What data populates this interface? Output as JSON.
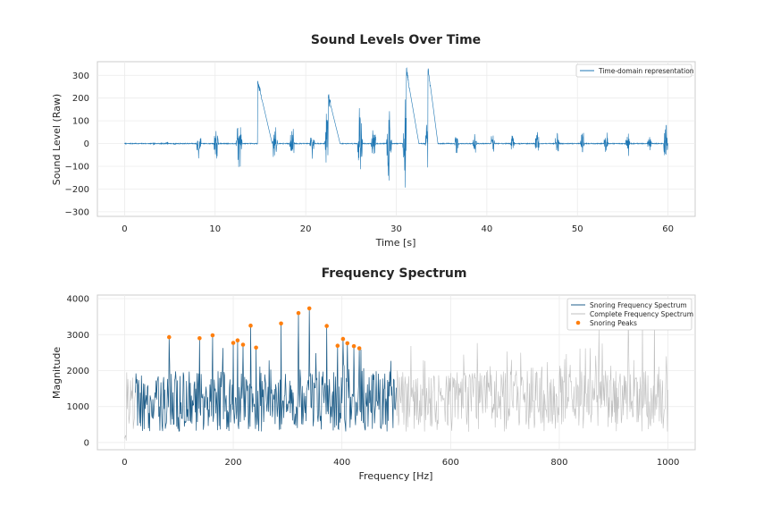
{
  "chart_data": [
    {
      "type": "line",
      "title": "Sound Levels Over Time",
      "xlabel": "Time [s]",
      "ylabel": "Sound Level (Raw)",
      "xlim": [
        -3,
        63
      ],
      "ylim": [
        -320,
        360
      ],
      "xticks": [
        0,
        10,
        20,
        30,
        40,
        50,
        60
      ],
      "yticks": [
        -300,
        -200,
        -100,
        0,
        100,
        200,
        300
      ],
      "grid": true,
      "legend": "top-right",
      "series": [
        {
          "name": "Time-domain representation",
          "color": "#1f77b4",
          "events": [
            {
              "t": 3.1,
              "dur": 0.3,
              "amp": 8
            },
            {
              "t": 4.5,
              "dur": 0.4,
              "amp": 8
            },
            {
              "t": 5.4,
              "dur": 0.3,
              "amp": 6
            },
            {
              "t": 7.9,
              "dur": 0.6,
              "amp": 85
            },
            {
              "t": 9.8,
              "dur": 0.6,
              "amp": 80
            },
            {
              "t": 12.3,
              "dur": 0.7,
              "amp": 160
            },
            {
              "t": 14.7,
              "dur": 0.5,
              "amp": 200
            },
            {
              "t": 16.3,
              "dur": 0.6,
              "amp": 110
            },
            {
              "t": 18.2,
              "dur": 0.6,
              "amp": 120
            },
            {
              "t": 20.4,
              "dur": 0.6,
              "amp": 90
            },
            {
              "t": 22.1,
              "dur": 0.8,
              "amp": 260
            },
            {
              "t": 25.7,
              "dur": 0.6,
              "amp": 210
            },
            {
              "t": 27.2,
              "dur": 0.6,
              "amp": 110
            },
            {
              "t": 28.9,
              "dur": 0.6,
              "amp": 280
            },
            {
              "t": 30.7,
              "dur": 0.8,
              "amp": 240
            },
            {
              "t": 33.2,
              "dur": 0.6,
              "amp": 280
            },
            {
              "t": 36.4,
              "dur": 0.5,
              "amp": 60
            },
            {
              "t": 38.4,
              "dur": 0.5,
              "amp": 55
            },
            {
              "t": 40.4,
              "dur": 0.5,
              "amp": 70
            },
            {
              "t": 42.6,
              "dur": 0.5,
              "amp": 55
            },
            {
              "t": 45.3,
              "dur": 0.5,
              "amp": 90
            },
            {
              "t": 47.5,
              "dur": 0.5,
              "amp": 85
            },
            {
              "t": 50.3,
              "dur": 0.5,
              "amp": 75
            },
            {
              "t": 52.9,
              "dur": 0.5,
              "amp": 70
            },
            {
              "t": 55.3,
              "dur": 0.5,
              "amp": 90
            },
            {
              "t": 57.7,
              "dur": 0.5,
              "amp": 55
            },
            {
              "t": 59.5,
              "dur": 0.5,
              "amp": 125
            }
          ],
          "ramps": [
            {
              "t0": 14.7,
              "v0": 275,
              "t1": 16.3,
              "v1": 0
            },
            {
              "t0": 22.5,
              "v0": 210,
              "t1": 23.8,
              "v1": 0
            },
            {
              "t0": 31.1,
              "v0": 325,
              "t1": 32.5,
              "v1": 0
            },
            {
              "t0": 33.5,
              "v0": 335,
              "t1": 34.6,
              "v1": 0
            }
          ]
        }
      ]
    },
    {
      "type": "line",
      "title": "Frequency Spectrum",
      "xlabel": "Frequency [Hz]",
      "ylabel": "Magnitude",
      "xlim": [
        -50,
        1050
      ],
      "ylim": [
        -200,
        4100
      ],
      "xticks": [
        0,
        200,
        400,
        600,
        800,
        1000
      ],
      "yticks": [
        0,
        1000,
        2000,
        3000,
        4000
      ],
      "grid": true,
      "legend": "top-right",
      "series": [
        {
          "name": "Snoring Frequency Spectrum",
          "color": "#1f5f8b",
          "range": [
            20,
            500
          ]
        },
        {
          "name": "Complete Frequency Spectrum",
          "color": "#bfbfbf",
          "range": [
            0,
            1000
          ]
        },
        {
          "name": "Snoring Peaks",
          "color": "#ff7f0e",
          "points": [
            [
              82,
              2930
            ],
            [
              138,
              2900
            ],
            [
              162,
              2980
            ],
            [
              200,
              2770
            ],
            [
              208,
              2840
            ],
            [
              218,
              2720
            ],
            [
              232,
              3250
            ],
            [
              242,
              2640
            ],
            [
              288,
              3310
            ],
            [
              320,
              3600
            ],
            [
              340,
              3730
            ],
            [
              372,
              3240
            ],
            [
              392,
              2690
            ],
            [
              402,
              2880
            ],
            [
              410,
              2760
            ],
            [
              422,
              2680
            ],
            [
              432,
              2620
            ]
          ]
        }
      ]
    }
  ]
}
